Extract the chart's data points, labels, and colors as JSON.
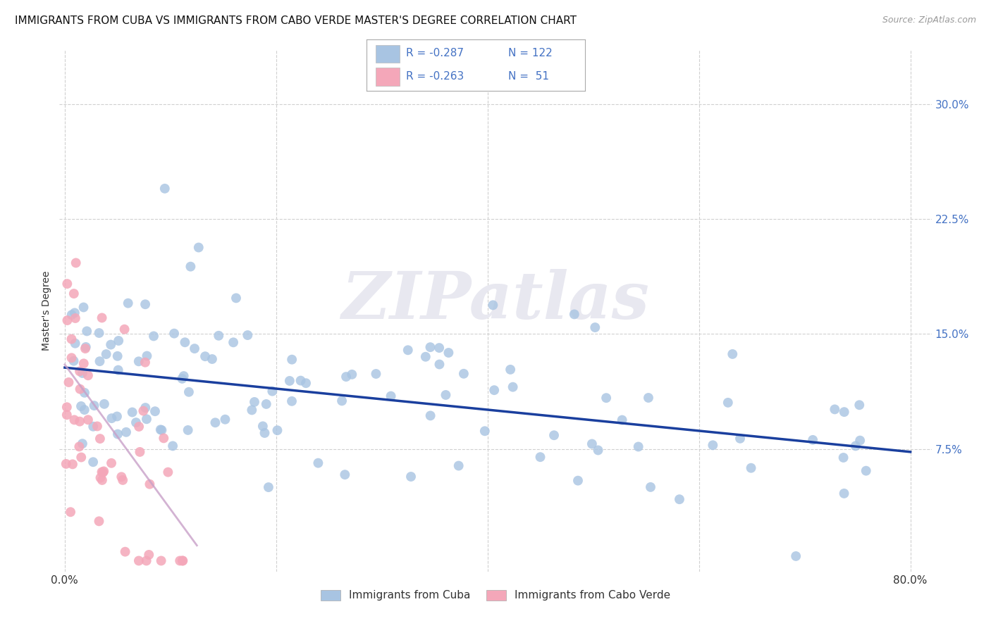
{
  "title": "IMMIGRANTS FROM CUBA VS IMMIGRANTS FROM CABO VERDE MASTER'S DEGREE CORRELATION CHART",
  "source": "Source: ZipAtlas.com",
  "ylabel": "Master's Degree",
  "ytick_labels": [
    "7.5%",
    "15.0%",
    "22.5%",
    "30.0%"
  ],
  "ytick_values": [
    0.075,
    0.15,
    0.225,
    0.3
  ],
  "xlim": [
    -0.005,
    0.82
  ],
  "ylim": [
    -0.005,
    0.335
  ],
  "legend_blue_R": "-0.287",
  "legend_blue_N": "122",
  "legend_pink_R": "-0.263",
  "legend_pink_N": " 51",
  "legend_blue_label": "Immigrants from Cuba",
  "legend_pink_label": "Immigrants from Cabo Verde",
  "blue_color": "#a8c4e2",
  "pink_color": "#f4a7b9",
  "line_blue_color": "#1a3f9e",
  "line_pink_color": "#c8a0c8",
  "watermark": "ZIPatlas",
  "background_color": "#ffffff",
  "grid_color": "#d0d0d0",
  "blue_line_x0": 0.0,
  "blue_line_x1": 0.8,
  "blue_line_y0": 0.128,
  "blue_line_y1": 0.073,
  "pink_line_x0": 0.0,
  "pink_line_x1": 0.125,
  "pink_line_y0": 0.13,
  "pink_line_y1": 0.012
}
